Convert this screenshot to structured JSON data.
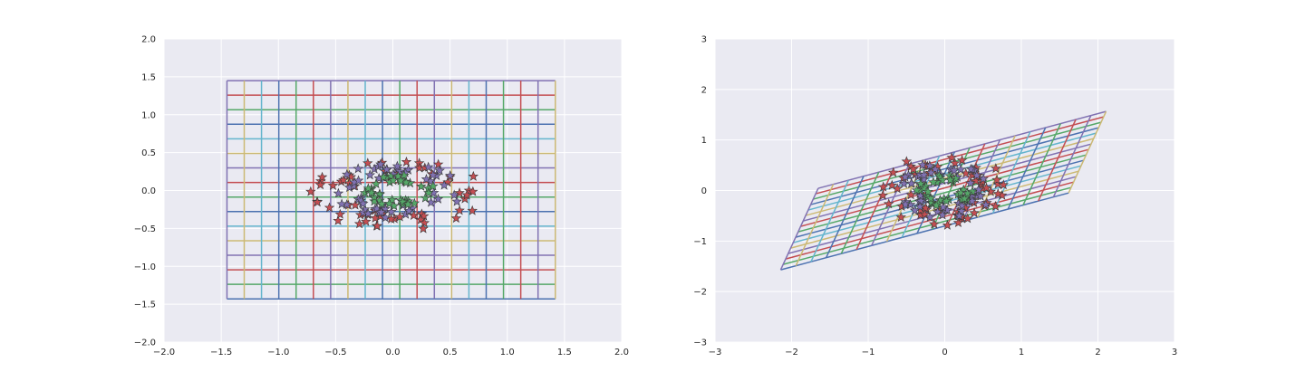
{
  "chart_data": [
    {
      "type": "line",
      "subtype": "grid-with-star-scatter",
      "title": "",
      "xlabel": "",
      "ylabel": "",
      "xlim": [
        -2.0,
        2.0
      ],
      "ylim": [
        -2.0,
        2.0
      ],
      "xticks": [
        "−2.0",
        "−1.5",
        "−1.0",
        "−0.5",
        "0.0",
        "0.5",
        "1.0",
        "1.5",
        "2.0"
      ],
      "yticks": [
        "2.0",
        "1.5",
        "1.0",
        "0.5",
        "0.0",
        "−0.5",
        "−1.0",
        "−1.5",
        "−2.0"
      ],
      "xtick_values": [
        -2.0,
        -1.5,
        -1.0,
        -0.5,
        0.0,
        0.5,
        1.0,
        1.5,
        2.0
      ],
      "ytick_values": [
        2.0,
        1.5,
        1.0,
        0.5,
        0.0,
        -0.5,
        -1.0,
        -1.5,
        -2.0
      ],
      "background": "#eaeaf2",
      "grid": true,
      "mesh": {
        "x_range": [
          -1.45,
          1.42
        ],
        "y_range": [
          -1.43,
          1.45
        ],
        "n_vertical": 20,
        "n_horizontal": 16,
        "transform": [
          [
            1,
            0
          ],
          [
            0,
            1
          ]
        ]
      },
      "scatter": {
        "marker": "star",
        "clusters": [
          {
            "center": [
              0.05,
              -0.05
            ],
            "radius_x": 0.75,
            "radius_y": 0.45,
            "count": 60,
            "color": "#c44e52"
          },
          {
            "center": [
              0.05,
              0.0
            ],
            "radius_x": 0.55,
            "radius_y": 0.35,
            "count": 55,
            "color": "#8172b2"
          },
          {
            "center": [
              0.05,
              0.0
            ],
            "radius_x": 0.3,
            "radius_y": 0.2,
            "count": 40,
            "color": "#55a868"
          }
        ]
      }
    },
    {
      "type": "line",
      "subtype": "grid-with-star-scatter",
      "title": "",
      "xlabel": "",
      "ylabel": "",
      "xlim": [
        -3,
        3
      ],
      "ylim": [
        -3,
        3
      ],
      "xticks": [
        "−3",
        "−2",
        "−1",
        "0",
        "1",
        "2",
        "3"
      ],
      "yticks": [
        "3",
        "2",
        "1",
        "0",
        "−1",
        "−2",
        "−3"
      ],
      "xtick_values": [
        -3,
        -2,
        -1,
        0,
        1,
        2,
        3
      ],
      "ytick_values": [
        3,
        2,
        1,
        0,
        -1,
        -2,
        -3
      ],
      "background": "#eaeaf2",
      "grid": true,
      "mesh": {
        "x_range": [
          -1.45,
          1.42
        ],
        "y_range": [
          -1.43,
          1.45
        ],
        "n_vertical": 20,
        "n_horizontal": 16,
        "transform": [
          [
            1.31,
            0.17
          ],
          [
            0.53,
            0.56
          ]
        ]
      },
      "scatter": {
        "marker": "star",
        "clusters": [
          {
            "center": [
              0.0,
              0.0
            ],
            "radius_x": 0.8,
            "radius_y": 0.7,
            "count": 60,
            "color": "#c44e52"
          },
          {
            "center": [
              0.0,
              0.0
            ],
            "radius_x": 0.6,
            "radius_y": 0.55,
            "count": 55,
            "color": "#8172b2"
          },
          {
            "center": [
              0.0,
              0.0
            ],
            "radius_x": 0.35,
            "radius_y": 0.3,
            "count": 40,
            "color": "#55a868"
          }
        ]
      }
    }
  ],
  "palette": [
    "#4c72b0",
    "#55a868",
    "#c44e52",
    "#8172b2",
    "#ccb974",
    "#64b5cd"
  ],
  "star_edge_color": "#3a3a3a"
}
